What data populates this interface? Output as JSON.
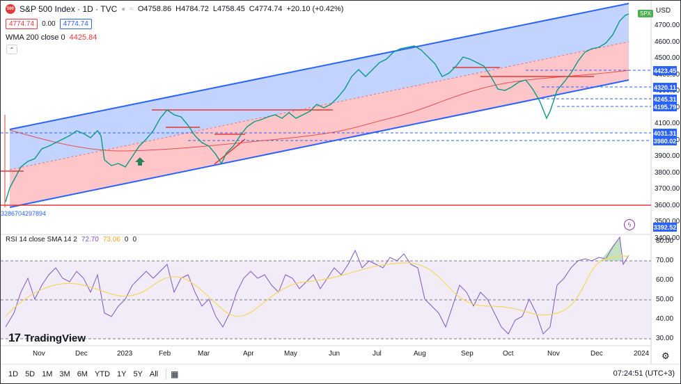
{
  "header": {
    "symbol_badge": "500",
    "title": "S&P 500 Index · 1D · TVC",
    "open": "O4758.86",
    "high": "H4784.72",
    "low": "L4758.45",
    "close": "C4774.74",
    "change": "+20.10 (+0.42%)",
    "bid": "4774.74",
    "spread": "0.00",
    "ask": "4774.74"
  },
  "indicators": {
    "wma_label": "WMA 200 close 0",
    "wma_value": "4425.84",
    "rsi_label": "RSI 14 close SMA 14 2",
    "rsi_value": "72.70",
    "rsi_sma_value": "73.06",
    "rsi_extra1": "0",
    "rsi_extra2": "0"
  },
  "price_axis": {
    "currency": "USD",
    "symbol_tag": "SPX",
    "ticks": [
      "4700.00",
      "4600.00",
      "4500.00",
      "4400.00",
      "4300.00",
      "4200.00",
      "4100.00",
      "4000.00",
      "3900.00",
      "3800.00",
      "3700.00",
      "3600.00",
      "3500.00",
      "3400.00"
    ],
    "tagged_prices": [
      {
        "label": "4423.45",
        "color": "#2962ff"
      },
      {
        "label": "4320.11",
        "color": "#2962ff"
      },
      {
        "label": "4245.31",
        "color": "#2962ff"
      },
      {
        "label": "4195.79",
        "color": "#2962ff"
      },
      {
        "label": "4031.31",
        "color": "#2962ff"
      },
      {
        "label": "3980.02",
        "color": "#2962ff"
      },
      {
        "label": "3392.52",
        "color": "#2962ff"
      }
    ],
    "low_marker_label": "3286704297894"
  },
  "rsi_axis": {
    "ticks": [
      "80.00",
      "70.00",
      "60.00",
      "50.00",
      "40.00",
      "30.00"
    ]
  },
  "time_axis": {
    "labels": [
      "Nov",
      "Dec",
      "2023",
      "Feb",
      "Mar",
      "Apr",
      "May",
      "Jun",
      "Jul",
      "Aug",
      "Sep",
      "Oct",
      "Nov",
      "Dec",
      "2024"
    ]
  },
  "timeframes": [
    "1D",
    "5D",
    "1M",
    "3M",
    "6M",
    "YTD",
    "1Y",
    "5Y",
    "All"
  ],
  "clock": "07:24:51 (UTC+3)",
  "branding": {
    "logo_mark": "17",
    "logo_text": "TradingView"
  },
  "colors": {
    "channel_blue": "#2962ff",
    "channel_fill_blue": "#aec4ff",
    "channel_fill_red": "#ffb3b8",
    "wma_red": "#e53935",
    "rsi_line": "#7e57c2",
    "rsi_sma": "#f9a825",
    "rsi_band": "#ede7f6",
    "up_green": "#089981",
    "down_red": "#f23645"
  }
}
